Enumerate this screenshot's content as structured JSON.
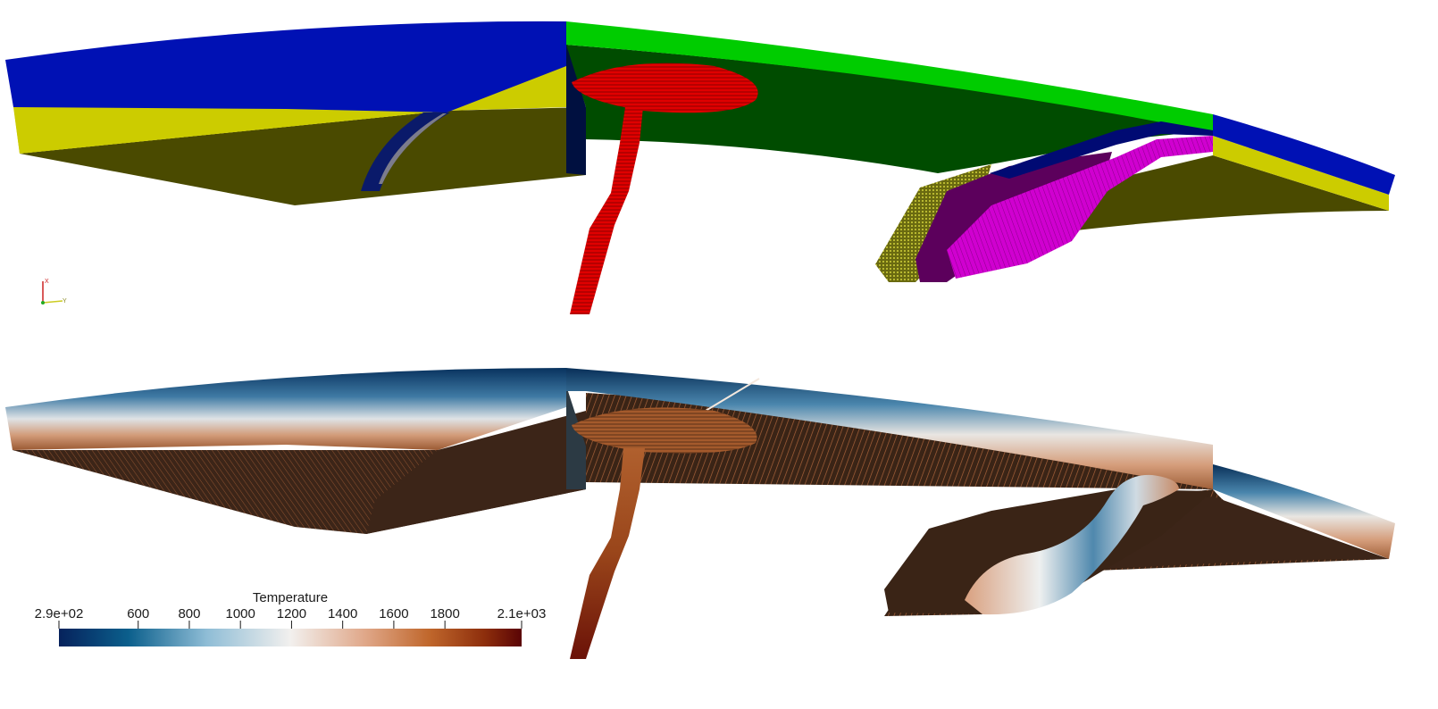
{
  "views": {
    "top": {
      "name": "composition-view"
    },
    "bottom": {
      "name": "temperature-view"
    }
  },
  "orientation_axes": {
    "x_label": "X",
    "y_label": "Y"
  },
  "colors": {
    "blue_layer": "#0011b4",
    "yellow_layer": "#cccc00",
    "olive_body": "#4a4a00",
    "green_top": "#00cc00",
    "dark_green": "#004c00",
    "plume_red": "#e00000",
    "magenta": "#d400d4",
    "purple": "#5c005c",
    "dark_blue": "#000a73"
  },
  "colorbar": {
    "title": "Temperature",
    "ticks": [
      "2.9e+02",
      "600",
      "800",
      "1000",
      "1200",
      "1400",
      "1600",
      "1800",
      "2.1e+03"
    ],
    "tick_values": [
      290,
      600,
      800,
      1000,
      1200,
      1400,
      1600,
      1800,
      2100
    ],
    "range": [
      290,
      2100
    ],
    "gradient": [
      "#06225c",
      "#0b5f8c",
      "#8fbdd6",
      "#f2f0ee",
      "#e0a88a",
      "#c0672c",
      "#8d2e0c",
      "#5a0405"
    ]
  }
}
